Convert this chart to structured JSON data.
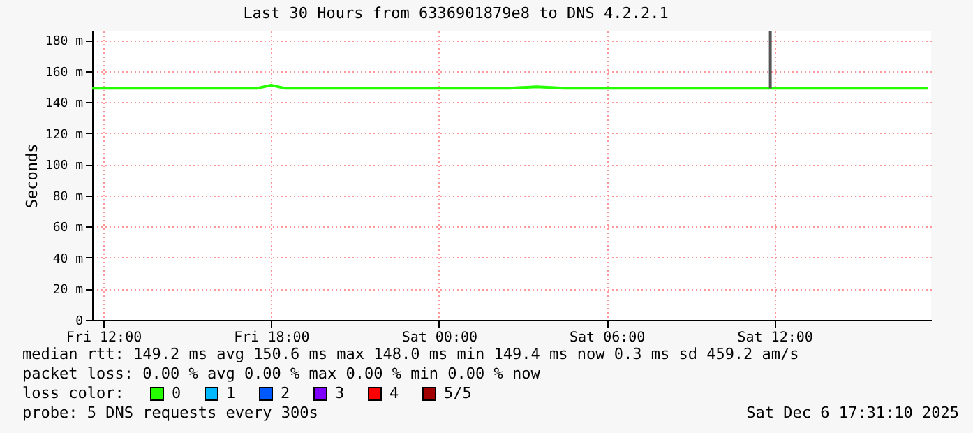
{
  "chart_data": {
    "type": "line",
    "title": "Last 30 Hours from 6336901879e8 to DNS 4.2.2.1",
    "ylabel": "Seconds",
    "xlim": [
      "2025-12-05T11:36",
      "2025-12-06T17:36"
    ],
    "ylim": [
      0,
      186
    ],
    "xticks": [
      {
        "value": "2025-12-05T12:00",
        "label": "Fri 12:00"
      },
      {
        "value": "2025-12-05T18:00",
        "label": "Fri 18:00"
      },
      {
        "value": "2025-12-06T00:00",
        "label": "Sat 00:00"
      },
      {
        "value": "2025-12-06T06:00",
        "label": "Sat 06:00"
      },
      {
        "value": "2025-12-06T12:00",
        "label": "Sat 12:00"
      }
    ],
    "yticks": [
      0,
      {
        "value": 20,
        "label": "20 m"
      },
      {
        "value": 40,
        "label": "40 m"
      },
      {
        "value": 60,
        "label": "60 m"
      },
      {
        "value": 80,
        "label": "80 m"
      },
      {
        "value": 100,
        "label": "100 m"
      },
      {
        "value": 120,
        "label": "120 m"
      },
      {
        "value": 140,
        "label": "140 m"
      },
      {
        "value": 160,
        "label": "160 m"
      },
      {
        "value": 180,
        "label": "180 m"
      }
    ],
    "grid": true,
    "legend": "bottom",
    "marker": "none",
    "line_style": "solid",
    "series": [
      {
        "name": "0",
        "color": "#26ff00",
        "x": [
          "2025-12-05T11:36",
          "2025-12-05T12:30",
          "2025-12-05T13:30",
          "2025-12-05T14:30",
          "2025-12-05T15:30",
          "2025-12-05T16:30",
          "2025-12-05T17:30",
          "2025-12-05T18:00",
          "2025-12-05T18:30",
          "2025-12-05T19:30",
          "2025-12-05T20:30",
          "2025-12-05T21:30",
          "2025-12-05T22:30",
          "2025-12-05T23:30",
          "2025-12-06T00:30",
          "2025-12-06T01:30",
          "2025-12-06T02:30",
          "2025-12-06T03:30",
          "2025-12-06T04:30",
          "2025-12-06T05:30",
          "2025-12-06T06:30",
          "2025-12-06T07:30",
          "2025-12-06T08:30",
          "2025-12-06T09:30",
          "2025-12-06T10:30",
          "2025-12-06T11:30",
          "2025-12-06T12:00",
          "2025-12-06T12:30",
          "2025-12-06T13:30",
          "2025-12-06T14:30",
          "2025-12-06T15:30",
          "2025-12-06T16:30",
          "2025-12-06T17:30"
        ],
        "values": [
          149,
          149,
          149,
          149,
          149,
          149,
          149,
          151,
          149,
          149,
          149,
          149,
          149,
          149,
          149,
          149,
          149,
          150,
          149,
          149,
          149,
          149,
          149,
          149,
          149,
          149,
          149,
          149,
          149,
          149,
          149,
          149,
          149
        ]
      },
      {
        "name": "1",
        "color": "#00b8ff"
      },
      {
        "name": "2",
        "color": "#0059ff"
      },
      {
        "name": "3",
        "color": "#7e00ff"
      },
      {
        "name": "4",
        "color": "#ff0000"
      },
      {
        "name": "5/5",
        "color": "#a10000"
      },
      {
        "color": "#555555",
        "x": [
          "2025-12-06T11:51",
          "2025-12-06T11:51"
        ],
        "values": [
          149,
          186
        ]
      }
    ],
    "annotations": [
      "median rtt:  149.2 ms avg  150.6 ms max  148.0 ms min  149.4 ms now  0.3 ms sd  459.2  am/s",
      "packet loss: 0.00 % avg  0.00 % max  0.00 % min  0.00 % now",
      "loss color:",
      "probe:       5 DNS requests every 300s",
      "Sat Dec  6 17:31:10 2025"
    ]
  }
}
